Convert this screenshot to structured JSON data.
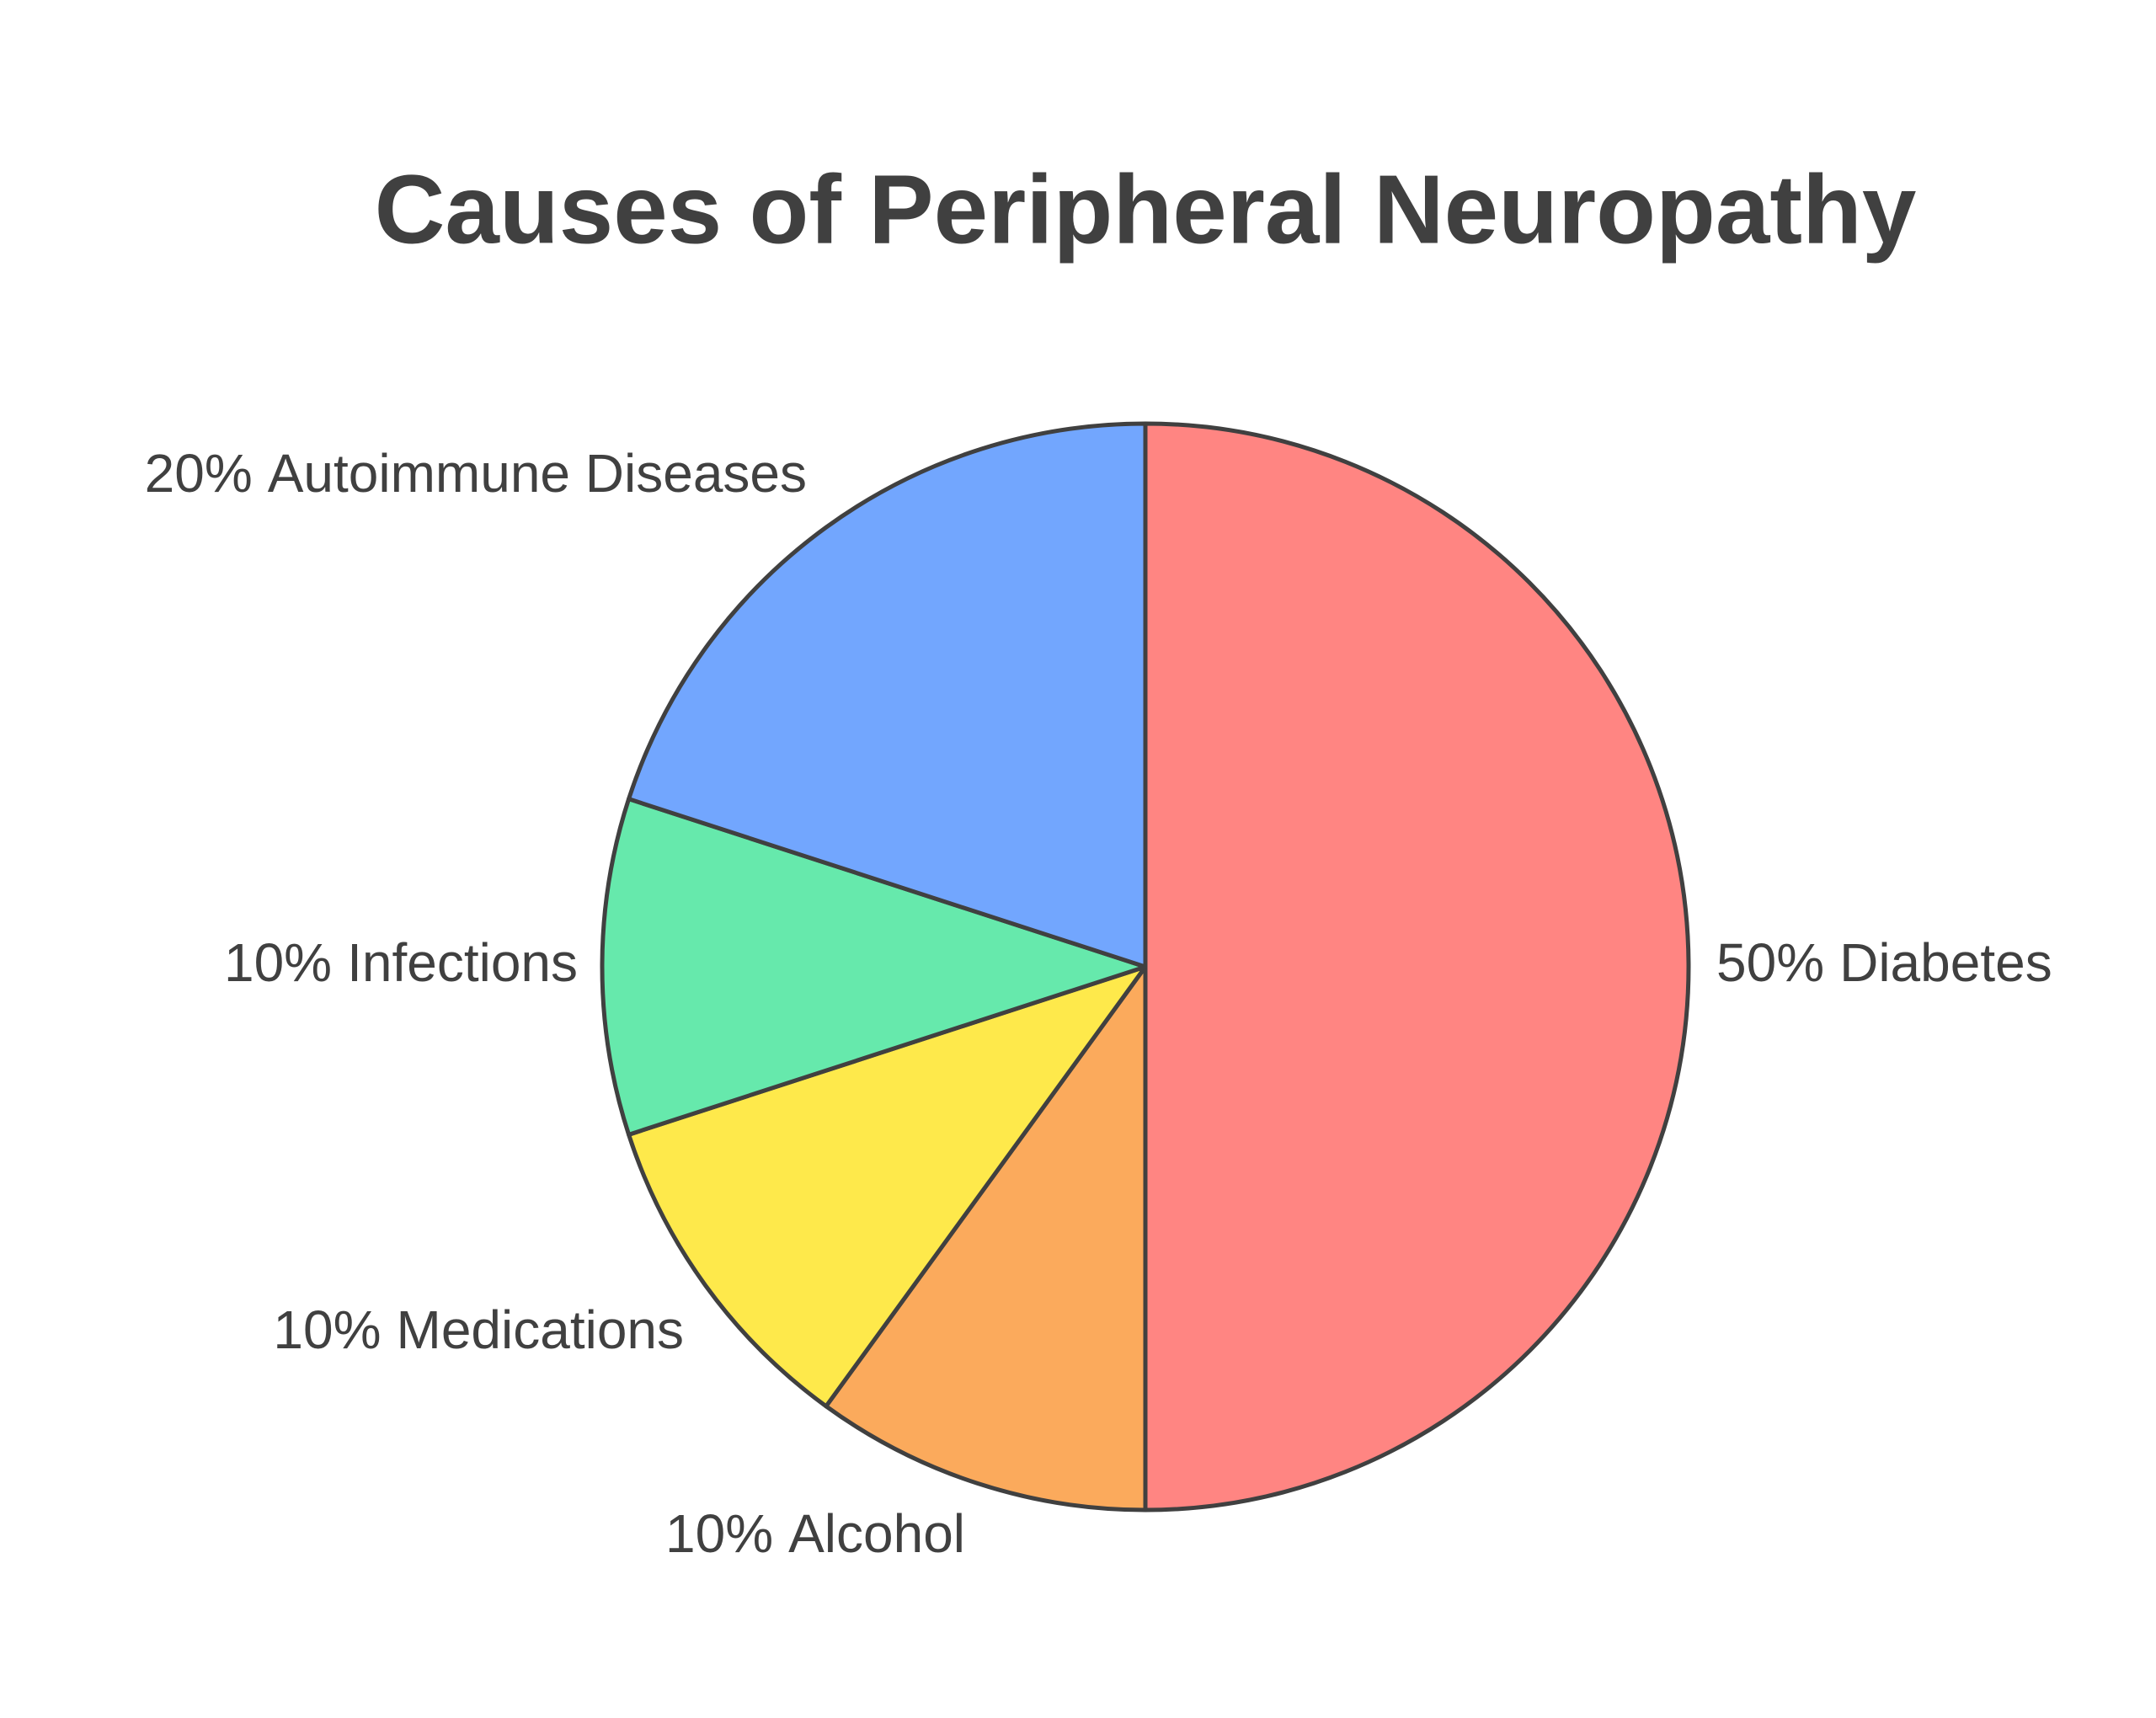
{
  "chart_data": {
    "type": "pie",
    "title": "Causes of Peripheral Neuropathy",
    "categories": [
      "Diabetes",
      "Alcohol",
      "Medications",
      "Infections",
      "Autoimmune Diseases"
    ],
    "values": [
      50,
      10,
      10,
      10,
      20
    ],
    "value_labels": [
      "50%",
      "10%",
      "10%",
      "10%",
      "20%"
    ],
    "colors": [
      "#ff8582",
      "#fbaa5c",
      "#fee94b",
      "#66e9ac",
      "#72a6fe"
    ]
  }
}
